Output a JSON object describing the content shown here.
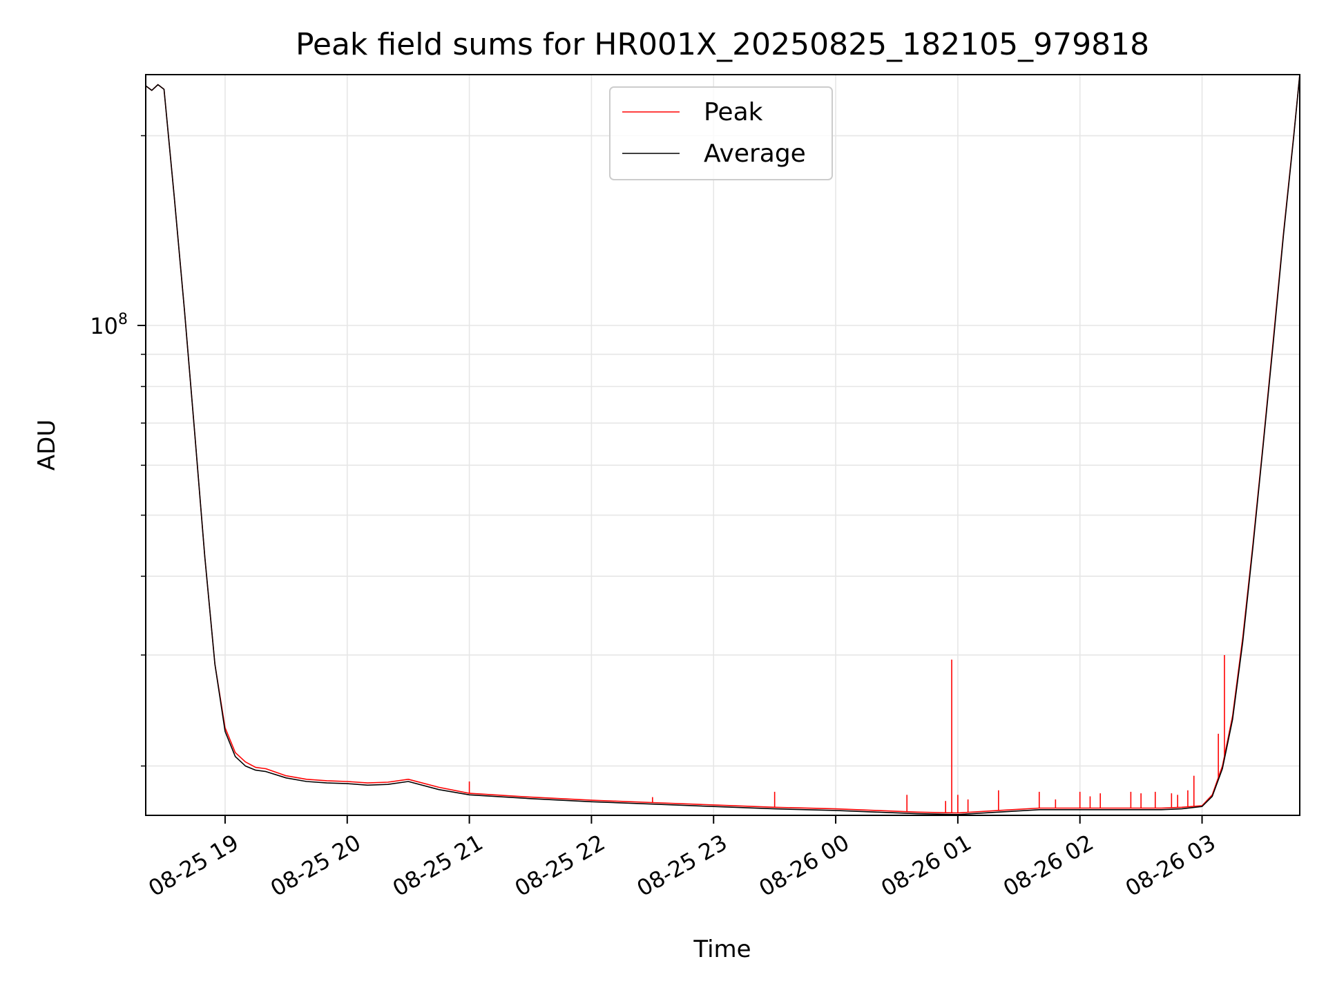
{
  "chart_data": {
    "type": "line",
    "title": "Peak field sums for HR001X_20250825_182105_979818",
    "xlabel": "Time",
    "ylabel": "ADU",
    "yscale": "log",
    "xlim": [
      "2025-08-25 18:21",
      "2025-08-26 03:48"
    ],
    "ylim": [
      16700000,
      250000000
    ],
    "x_tick_labels": [
      "08-25 19",
      "08-25 20",
      "08-25 21",
      "08-25 22",
      "08-25 23",
      "08-26 00",
      "08-26 01",
      "08-26 02",
      "08-26 03"
    ],
    "x_tick_values": [
      "2025-08-25 19:00",
      "2025-08-25 20:00",
      "2025-08-25 21:00",
      "2025-08-25 22:00",
      "2025-08-25 23:00",
      "2025-08-26 00:00",
      "2025-08-26 01:00",
      "2025-08-26 02:00",
      "2025-08-26 03:00"
    ],
    "y_major_ticks": [
      {
        "value": 100000000,
        "base": "10",
        "exp": "8"
      }
    ],
    "y_minor_ticks": [
      20000000,
      30000000,
      40000000,
      50000000,
      60000000,
      70000000,
      80000000,
      90000000,
      200000000
    ],
    "grid": true,
    "legend_position": "top-center",
    "series": [
      {
        "name": "Peak",
        "color": "#ff0000",
        "x": [
          "2025-08-25 18:21",
          "2025-08-25 18:24",
          "2025-08-25 18:27",
          "2025-08-25 18:30",
          "2025-08-25 18:35",
          "2025-08-25 18:40",
          "2025-08-25 18:45",
          "2025-08-25 18:50",
          "2025-08-25 18:55",
          "2025-08-25 19:00",
          "2025-08-25 19:05",
          "2025-08-25 19:10",
          "2025-08-25 19:15",
          "2025-08-25 19:20",
          "2025-08-25 19:30",
          "2025-08-25 19:40",
          "2025-08-25 19:50",
          "2025-08-25 20:00",
          "2025-08-25 20:10",
          "2025-08-25 20:20",
          "2025-08-25 20:30",
          "2025-08-25 20:45",
          "2025-08-25 21:00",
          "2025-08-25 21:30",
          "2025-08-25 22:00",
          "2025-08-25 22:30",
          "2025-08-25 23:00",
          "2025-08-25 23:30",
          "2025-08-26 00:00",
          "2025-08-26 00:20",
          "2025-08-26 00:40",
          "2025-08-26 01:00",
          "2025-08-26 01:20",
          "2025-08-26 01:40",
          "2025-08-26 02:00",
          "2025-08-26 02:20",
          "2025-08-26 02:40",
          "2025-08-26 02:50",
          "2025-08-26 03:00",
          "2025-08-26 03:05",
          "2025-08-26 03:10",
          "2025-08-26 03:15",
          "2025-08-26 03:20",
          "2025-08-26 03:25",
          "2025-08-26 03:30",
          "2025-08-26 03:35",
          "2025-08-26 03:40",
          "2025-08-26 03:45",
          "2025-08-26 03:48"
        ],
        "y": [
          240000000,
          236000000,
          241000000,
          237000000,
          160000000,
          106000000,
          68000000,
          43000000,
          29000000,
          23000000,
          21000000,
          20300000,
          19900000,
          19800000,
          19300000,
          19050000,
          18950000,
          18900000,
          18800000,
          18850000,
          19050000,
          18500000,
          18100000,
          17850000,
          17650000,
          17500000,
          17350000,
          17200000,
          17100000,
          17000000,
          16900000,
          16850000,
          17000000,
          17150000,
          17150000,
          17150000,
          17150000,
          17200000,
          17300000,
          18000000,
          20000000,
          24000000,
          32000000,
          45000000,
          65000000,
          95000000,
          140000000,
          200000000,
          250000000
        ],
        "spikes": [
          {
            "x": "2025-08-25 21:00",
            "y": 18900000
          },
          {
            "x": "2025-08-25 22:30",
            "y": 17850000
          },
          {
            "x": "2025-08-25 23:30",
            "y": 18200000
          },
          {
            "x": "2025-08-26 00:35",
            "y": 18000000
          },
          {
            "x": "2025-08-26 00:54",
            "y": 17600000
          },
          {
            "x": "2025-08-26 00:57",
            "y": 29500000
          },
          {
            "x": "2025-08-26 01:00",
            "y": 18000000
          },
          {
            "x": "2025-08-26 01:05",
            "y": 17700000
          },
          {
            "x": "2025-08-26 01:20",
            "y": 18300000
          },
          {
            "x": "2025-08-26 01:40",
            "y": 18200000
          },
          {
            "x": "2025-08-26 01:48",
            "y": 17700000
          },
          {
            "x": "2025-08-26 02:00",
            "y": 18200000
          },
          {
            "x": "2025-08-26 02:05",
            "y": 17900000
          },
          {
            "x": "2025-08-26 02:10",
            "y": 18100000
          },
          {
            "x": "2025-08-26 02:25",
            "y": 18200000
          },
          {
            "x": "2025-08-26 02:30",
            "y": 18100000
          },
          {
            "x": "2025-08-26 02:37",
            "y": 18200000
          },
          {
            "x": "2025-08-26 02:45",
            "y": 18100000
          },
          {
            "x": "2025-08-26 02:48",
            "y": 18000000
          },
          {
            "x": "2025-08-26 02:53",
            "y": 18300000
          },
          {
            "x": "2025-08-26 02:56",
            "y": 19300000
          },
          {
            "x": "2025-08-26 03:08",
            "y": 22500000
          },
          {
            "x": "2025-08-26 03:11",
            "y": 30000000
          }
        ]
      },
      {
        "name": "Average",
        "color": "#000000",
        "x": [
          "2025-08-25 18:21",
          "2025-08-25 18:24",
          "2025-08-25 18:27",
          "2025-08-25 18:30",
          "2025-08-25 18:35",
          "2025-08-25 18:40",
          "2025-08-25 18:45",
          "2025-08-25 18:50",
          "2025-08-25 18:55",
          "2025-08-25 19:00",
          "2025-08-25 19:05",
          "2025-08-25 19:10",
          "2025-08-25 19:15",
          "2025-08-25 19:20",
          "2025-08-25 19:30",
          "2025-08-25 19:40",
          "2025-08-25 19:50",
          "2025-08-25 20:00",
          "2025-08-25 20:10",
          "2025-08-25 20:20",
          "2025-08-25 20:30",
          "2025-08-25 20:45",
          "2025-08-25 21:00",
          "2025-08-25 21:30",
          "2025-08-25 22:00",
          "2025-08-25 22:30",
          "2025-08-25 23:00",
          "2025-08-25 23:30",
          "2025-08-26 00:00",
          "2025-08-26 00:20",
          "2025-08-26 00:40",
          "2025-08-26 01:00",
          "2025-08-26 01:20",
          "2025-08-26 01:40",
          "2025-08-26 02:00",
          "2025-08-26 02:20",
          "2025-08-26 02:40",
          "2025-08-26 02:50",
          "2025-08-26 03:00",
          "2025-08-26 03:05",
          "2025-08-26 03:10",
          "2025-08-26 03:15",
          "2025-08-26 03:20",
          "2025-08-26 03:25",
          "2025-08-26 03:30",
          "2025-08-26 03:35",
          "2025-08-26 03:40",
          "2025-08-26 03:45",
          "2025-08-26 03:48"
        ],
        "y": [
          240000000,
          236000000,
          241000000,
          237000000,
          160000000,
          106000000,
          68000000,
          43000000,
          29000000,
          22700000,
          20700000,
          20000000,
          19700000,
          19600000,
          19150000,
          18900000,
          18800000,
          18750000,
          18650000,
          18700000,
          18900000,
          18350000,
          18000000,
          17750000,
          17550000,
          17400000,
          17250000,
          17100000,
          17000000,
          16900000,
          16800000,
          16750000,
          16900000,
          17050000,
          17050000,
          17050000,
          17050000,
          17100000,
          17250000,
          17900000,
          19800000,
          23700000,
          31500000,
          44500000,
          64500000,
          94000000,
          139000000,
          199000000,
          250000000
        ]
      }
    ]
  }
}
